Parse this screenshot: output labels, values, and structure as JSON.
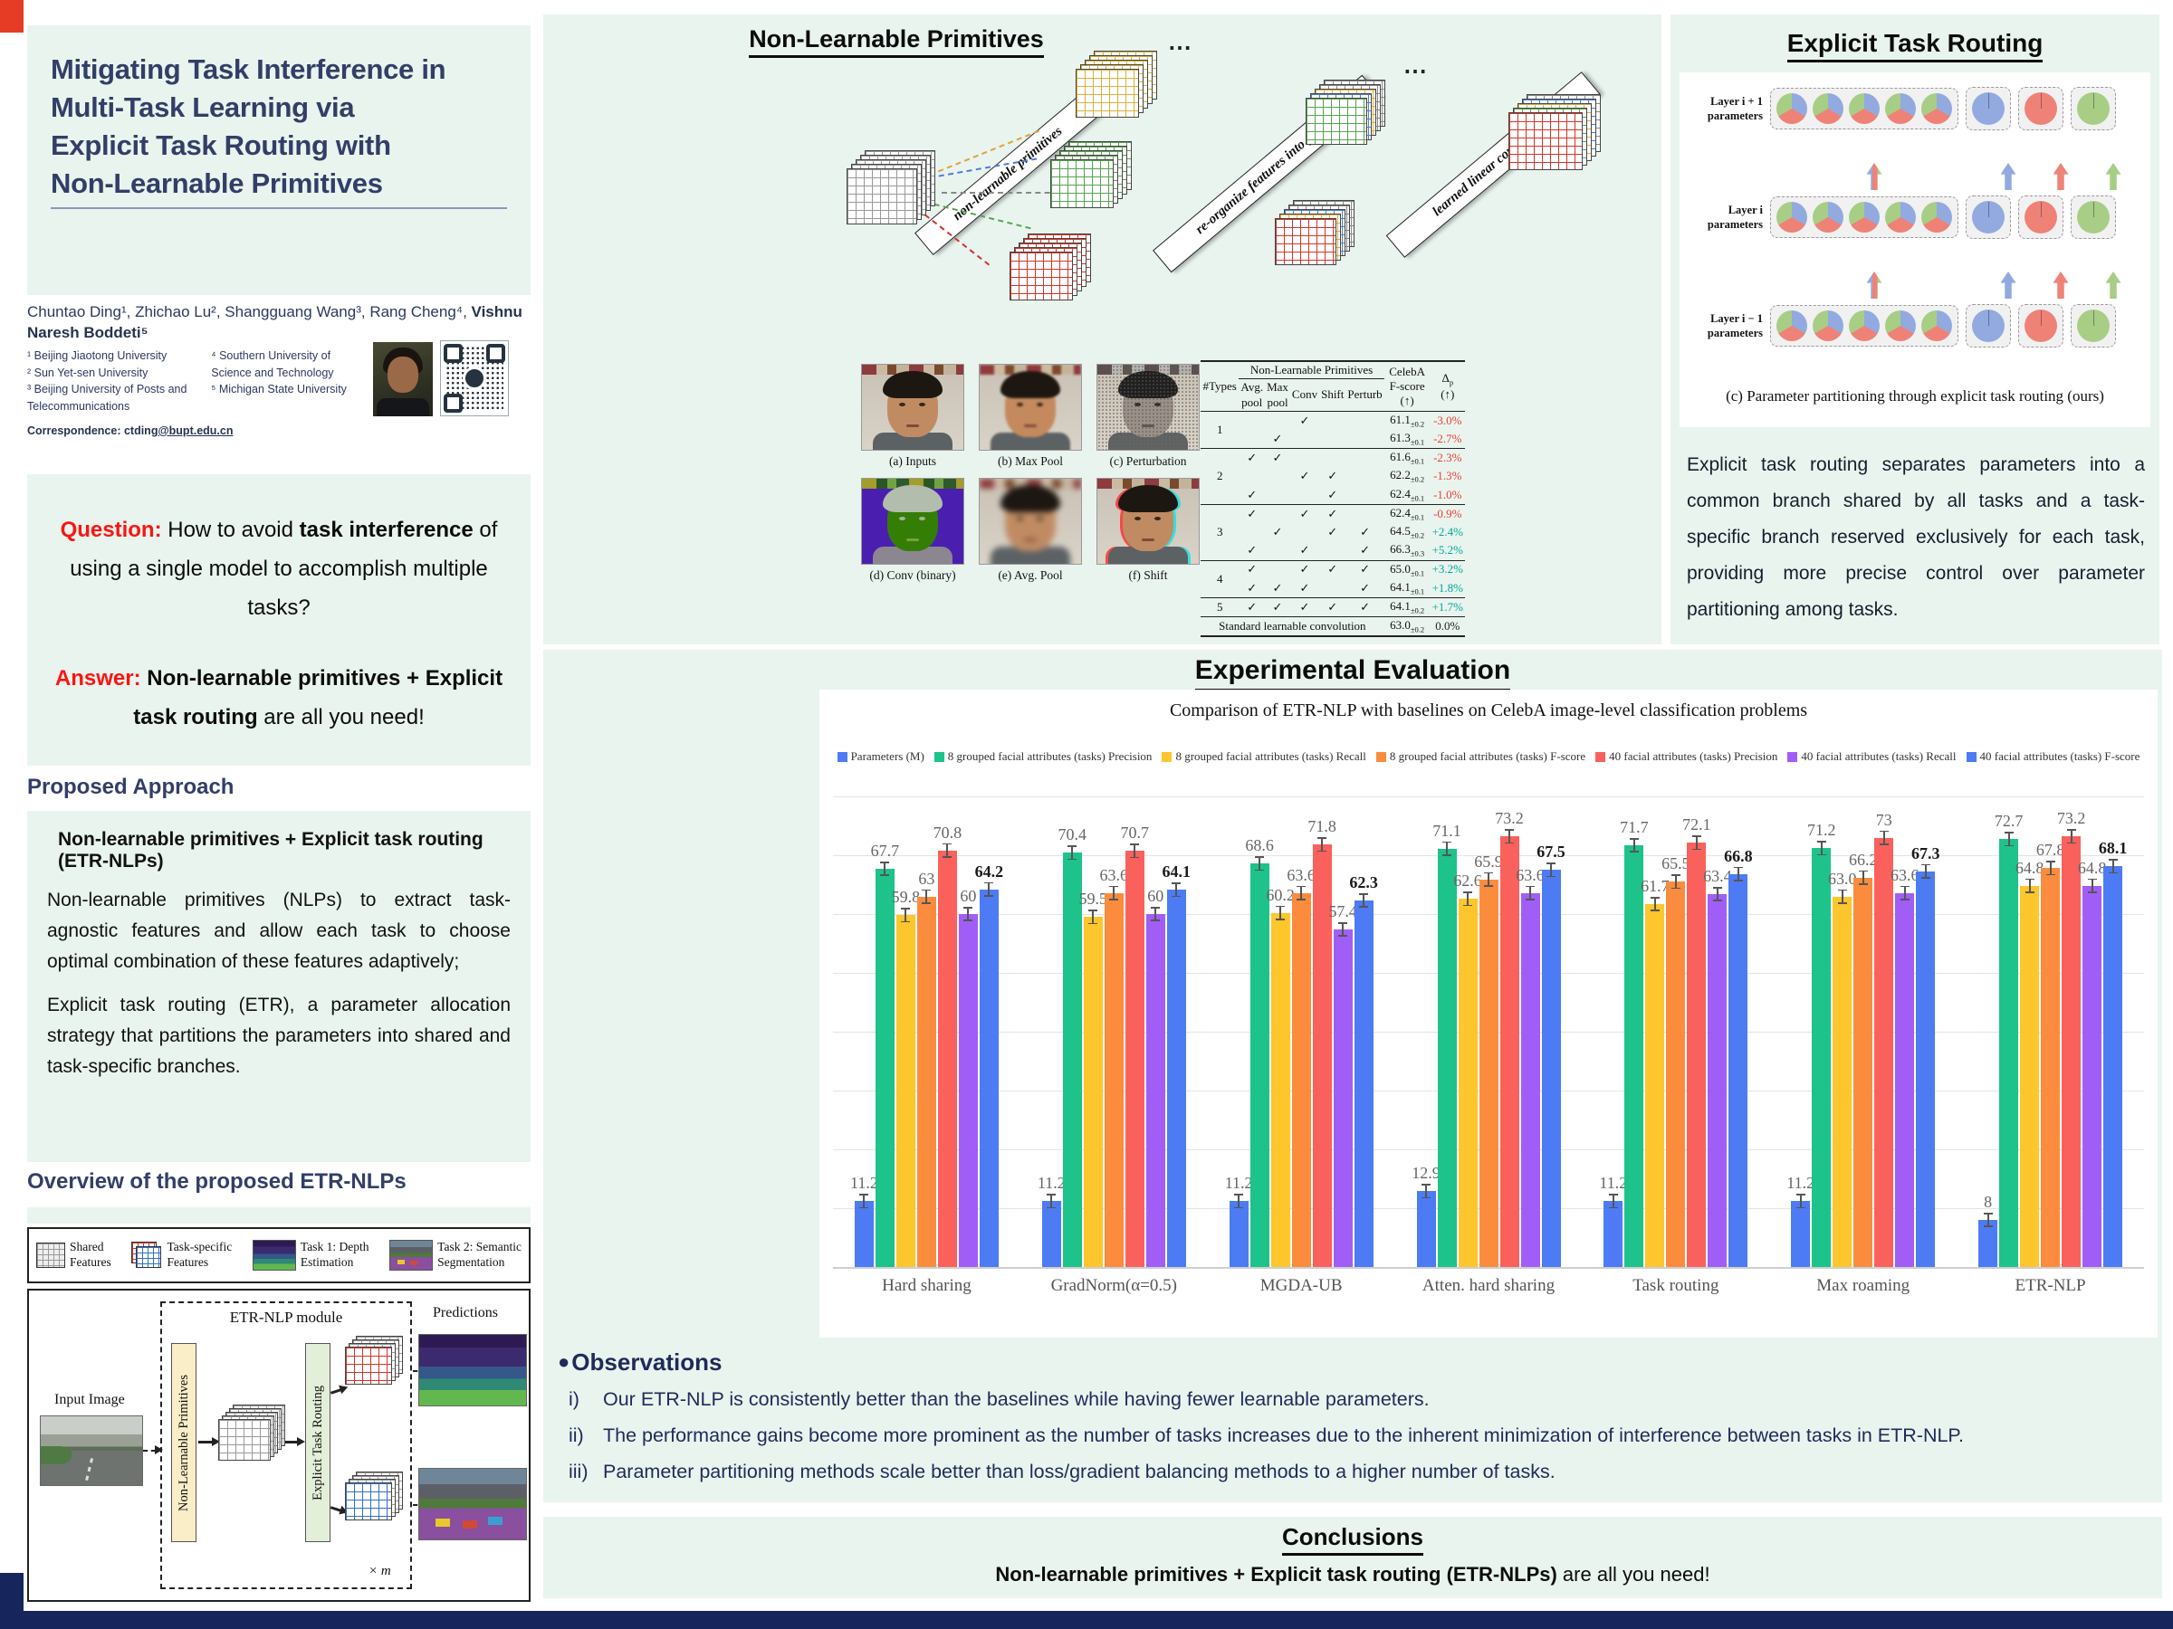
{
  "left": {
    "title_lines": [
      "Mitigating Task Interference in",
      "Multi-Task Learning via",
      "Explicit Task Routing with",
      "Non-Learnable Primitives"
    ],
    "authors": {
      "names_regular": "Chuntao Ding¹, Zhichao Lu², Shangguang Wang³, Rang Cheng⁴, ",
      "names_bold": "Vishnu Naresh Boddeti⁵",
      "affil_col1": [
        "¹ Beijing Jiaotong University",
        "² Sun Yet-sen University",
        "³ Beijing University of Posts and Telecommunications"
      ],
      "affil_col2": [
        "⁴ Southern University of Science and Technology",
        "⁵ Michigan State University"
      ],
      "correspondence_label": "Correspondence: ctding",
      "correspondence_link": "@bupt.edu.cn"
    },
    "qa": {
      "q_label": "Question:",
      "q_pre": " How to  avoid ",
      "q_bold": "task interference",
      "q_post": " of using a single model to accomplish multiple tasks?",
      "a_label": "Answer:",
      "a_bold": " Non-learnable primitives + Explicit task routing",
      "a_rest": " are all you need!"
    },
    "approach": {
      "heading": "Proposed Approach",
      "subtitle": "Non-learnable primitives + Explicit task routing (ETR-NLPs)",
      "p1": "Non-learnable primitives (NLPs) to extract task-agnostic features and allow each task to choose optimal combination of these features adaptively;",
      "p2": "Explicit task routing (ETR), a parameter allocation strategy that partitions the parameters into shared and task-specific branches."
    },
    "overview": {
      "heading": "Overview of the proposed ETR-NLPs",
      "legend": [
        {
          "icon": "shared",
          "line1": "Shared",
          "line2": "Features"
        },
        {
          "icon": "taskspec",
          "line1": "Task-specific",
          "line2": "Features"
        },
        {
          "icon": "depth",
          "line1": "Task 1: Depth",
          "line2": "Estimation"
        },
        {
          "icon": "seg",
          "line1": "Task 2:  Semantic",
          "line2": "Segmentation"
        }
      ],
      "input_label": "Input Image",
      "module_title": "ETR-NLP module",
      "nlp_box_label": "Non-Learnable Primitives",
      "etr_box_label": "Explicit Task Routing",
      "predictions_label": "Predictions",
      "times_m": "× m"
    }
  },
  "nlp_panel": {
    "title": "Non-Learnable Primitives",
    "banners": [
      "non-learnable primitives",
      "re-organize features into groups",
      "learned linear combination"
    ],
    "dots": "⋯",
    "faces": [
      {
        "variant": "input",
        "caption": "(a) Inputs"
      },
      {
        "variant": "maxpool",
        "caption": "(b) Max Pool"
      },
      {
        "variant": "perturb",
        "caption": "(c) Perturbation"
      },
      {
        "variant": "convb",
        "caption": "(d) Conv (binary)"
      },
      {
        "variant": "avgpool",
        "caption": "(e) Avg. Pool"
      },
      {
        "variant": "shift",
        "caption": "(f) Shift"
      }
    ],
    "table": {
      "types_header": "#Types",
      "group_header": "Non-Learnable Primitives",
      "primitive_cols": [
        "Avg. pool",
        "Max pool",
        "Conv",
        "Shift",
        "Perturb"
      ],
      "fscore_header_line1": "CelebA",
      "fscore_header_line2": "F-score (↑)",
      "delta_sym": "Δ",
      "delta_sub": "p",
      "delta_arrow": "(↑)",
      "groups": [
        {
          "type": "1",
          "rows": [
            {
              "checks": [
                0,
                0,
                1,
                0,
                0
              ],
              "fscore": "61.1",
              "err": "±0.2",
              "delta": "-3.0%",
              "cls": "neg"
            },
            {
              "checks": [
                0,
                1,
                0,
                0,
                0
              ],
              "fscore": "61.3",
              "err": "±0.1",
              "delta": "-2.7%",
              "cls": "neg"
            }
          ]
        },
        {
          "type": "2",
          "rows": [
            {
              "checks": [
                1,
                1,
                0,
                0,
                0
              ],
              "fscore": "61.6",
              "err": "±0.1",
              "delta": "-2.3%",
              "cls": "neg"
            },
            {
              "checks": [
                0,
                0,
                1,
                1,
                0
              ],
              "fscore": "62.2",
              "err": "±0.2",
              "delta": "-1.3%",
              "cls": "neg"
            },
            {
              "checks": [
                1,
                0,
                0,
                1,
                0
              ],
              "fscore": "62.4",
              "err": "±0.1",
              "delta": "-1.0%",
              "cls": "neg"
            }
          ]
        },
        {
          "type": "3",
          "rows": [
            {
              "checks": [
                1,
                0,
                1,
                1,
                0
              ],
              "fscore": "62.4",
              "err": "±0.1",
              "delta": "-0.9%",
              "cls": "neg"
            },
            {
              "checks": [
                0,
                1,
                0,
                1,
                1
              ],
              "fscore": "64.5",
              "err": "±0.2",
              "delta": "+2.4%",
              "cls": "pos"
            },
            {
              "checks": [
                1,
                0,
                1,
                0,
                1
              ],
              "fscore": "66.3",
              "err": "±0.3",
              "delta": "+5.2%",
              "cls": "pos"
            }
          ]
        },
        {
          "type": "4",
          "rows": [
            {
              "checks": [
                1,
                0,
                1,
                1,
                1
              ],
              "fscore": "65.0",
              "err": "±0.1",
              "delta": "+3.2%",
              "cls": "pos"
            },
            {
              "checks": [
                1,
                1,
                1,
                0,
                1
              ],
              "fscore": "64.1",
              "err": "±0.1",
              "delta": "+1.8%",
              "cls": "pos"
            }
          ]
        },
        {
          "type": "5",
          "rows": [
            {
              "checks": [
                1,
                1,
                1,
                1,
                1
              ],
              "fscore": "64.1",
              "err": "±0.2",
              "delta": "+1.7%",
              "cls": "pos"
            }
          ]
        }
      ],
      "footer": {
        "label": "Standard learnable convolution",
        "fscore": "63.0",
        "err": "±0.2",
        "delta": "0.0%",
        "cls": "zero"
      }
    }
  },
  "eval": {
    "title": "Experimental Evaluation",
    "observations": {
      "heading": "Observations",
      "bullet": "●",
      "items": [
        {
          "num": "i)",
          "text": "Our ETR-NLP is consistently better than the baselines while having fewer learnable parameters."
        },
        {
          "num": "ii)",
          "text": "The performance gains become more prominent as the number of  tasks increases due to the inherent minimization of interference between tasks in ETR-NLP."
        },
        {
          "num": "iii)",
          "text": "Parameter partitioning methods scale better than loss/gradient balancing methods to a higher number of tasks."
        }
      ]
    }
  },
  "chart_data": {
    "type": "bar",
    "title": "Comparison of ETR-NLP with baselines on CelebA image-level classification problems",
    "categories": [
      "Hard sharing",
      "GradNorm(α=0.5)",
      "MGDA-UB",
      "Atten. hard sharing",
      "Task routing",
      "Max roaming",
      "ETR-NLP"
    ],
    "series": [
      {
        "name": "Parameters (M)",
        "color": "#4d7bf3",
        "values": [
          11.2,
          11.2,
          11.2,
          12.9,
          11.2,
          11.2,
          8
        ],
        "labels": [
          "11.2",
          "11.2",
          "11.2",
          "12.9",
          "11.2",
          "11.2",
          "8"
        ]
      },
      {
        "name": "8 grouped facial attributes (tasks) Precision",
        "color": "#1ec28b",
        "values": [
          67.7,
          70.4,
          68.6,
          71.1,
          71.7,
          71.2,
          72.7
        ],
        "labels": [
          "67.7",
          "70.4",
          "68.6",
          "71.1",
          "71.7",
          "71.2",
          "72.7"
        ]
      },
      {
        "name": "8 grouped facial attributes (tasks) Recall",
        "color": "#fcc62c",
        "values": [
          59.8,
          59.5,
          60.2,
          62.6,
          61.7,
          63.0,
          64.8
        ],
        "labels": [
          "59.8",
          "59.5",
          "60.2",
          "62.6",
          "61.7",
          "63.0",
          "64.8"
        ]
      },
      {
        "name": "8 grouped facial attributes (tasks) F-score",
        "color": "#fb8c3e",
        "values": [
          63,
          63.6,
          63.6,
          65.9,
          65.5,
          66.2,
          67.8
        ],
        "labels": [
          "63",
          "63.6",
          "63.6",
          "65.9",
          "65.5",
          "66.2",
          "67.8"
        ]
      },
      {
        "name": "40 facial attributes (tasks) Precision",
        "color": "#fa615c",
        "values": [
          70.8,
          70.7,
          71.8,
          73.2,
          72.1,
          73,
          73.2
        ],
        "labels": [
          "70.8",
          "70.7",
          "71.8",
          "73.2",
          "72.1",
          "73",
          "73.2"
        ]
      },
      {
        "name": "40 facial attributes (tasks) Recall",
        "color": "#a15ef7",
        "values": [
          60,
          60,
          57.4,
          63.6,
          63.4,
          63.6,
          64.8
        ],
        "labels": [
          "60",
          "60",
          "57.4",
          "63.6",
          "63.4",
          "63.6",
          "64.8"
        ]
      },
      {
        "name": "40 facial attributes (tasks) F-score",
        "color": "#4d7bf3",
        "values": [
          64.2,
          64.1,
          62.3,
          67.5,
          66.8,
          67.3,
          68.1
        ],
        "labels": [
          "64.2",
          "64.1",
          "62.3",
          "67.5",
          "66.8",
          "67.3",
          "68.1"
        ]
      }
    ],
    "ylim": [
      0,
      80
    ],
    "grid": true,
    "legend_position": "top",
    "error_bars": true
  },
  "conclusions": {
    "heading": "Conclusions",
    "bold": "Non-learnable primitives + Explicit task routing (ETR-NLPs)",
    "rest": " are all you need!"
  },
  "etr": {
    "title": "Explicit Task Routing",
    "rows": [
      {
        "label_line1": "Layer i + 1",
        "label_line2": "parameters"
      },
      {
        "label_line1": "Layer i",
        "label_line2": "parameters"
      },
      {
        "label_line1": "Layer i − 1",
        "label_line2": "parameters"
      }
    ],
    "shared_pies": 5,
    "task_colors": [
      "#92aadf",
      "#ef8277",
      "#a8cd85"
    ],
    "caption": "(c) Parameter partitioning through explicit task routing (ours)",
    "description": "Explicit task routing separates parameters into a common branch shared by all tasks and a task-specific branch reserved exclusively for each task, providing more precise control over parameter partitioning among tasks."
  }
}
